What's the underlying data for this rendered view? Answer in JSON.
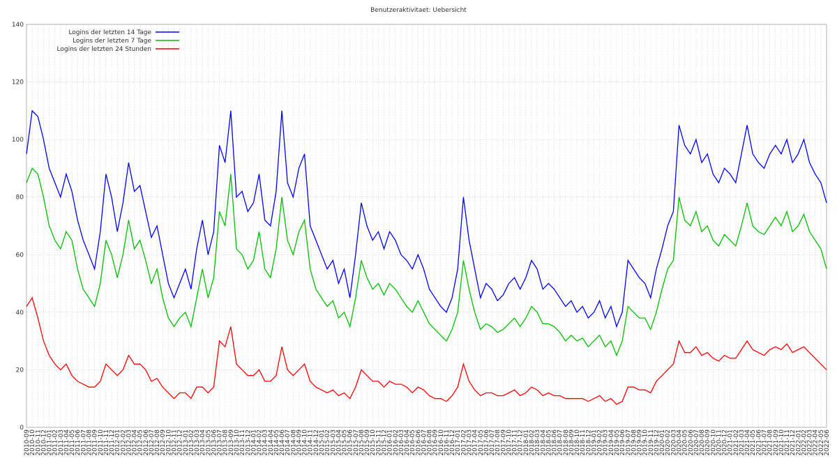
{
  "chart_data": {
    "type": "line",
    "title": "Benutzeraktivitaet: Uebersicht",
    "categories": [
      "2010-09",
      "2010-10",
      "2010-11",
      "2010-12",
      "2011-01",
      "2011-02",
      "2011-03",
      "2011-04",
      "2011-05",
      "2011-06",
      "2011-07",
      "2011-08",
      "2011-09",
      "2011-10",
      "2011-11",
      "2011-12",
      "2012-01",
      "2012-02",
      "2012-03",
      "2012-04",
      "2012-05",
      "2012-06",
      "2012-07",
      "2012-08",
      "2012-09",
      "2012-10",
      "2012-11",
      "2012-12",
      "2013-01",
      "2013-02",
      "2013-03",
      "2013-04",
      "2013-05",
      "2013-06",
      "2013-07",
      "2013-08",
      "2013-09",
      "2013-10",
      "2013-11",
      "2013-12",
      "2014-01",
      "2014-02",
      "2014-03",
      "2014-04",
      "2014-05",
      "2014-06",
      "2014-07",
      "2014-08",
      "2014-09",
      "2014-10",
      "2014-11",
      "2014-12",
      "2015-01",
      "2015-02",
      "2015-03",
      "2015-04",
      "2015-05",
      "2015-06",
      "2015-07",
      "2015-08",
      "2015-09",
      "2015-10",
      "2015-11",
      "2015-12",
      "2016-01",
      "2016-02",
      "2016-03",
      "2016-04",
      "2016-05",
      "2016-06",
      "2016-07",
      "2016-08",
      "2016-09",
      "2016-10",
      "2016-11",
      "2016-12",
      "2017-01",
      "2017-02",
      "2017-03",
      "2017-04",
      "2017-05",
      "2017-06",
      "2017-07",
      "2017-08",
      "2017-09",
      "2017-10",
      "2017-11",
      "2017-12",
      "2018-01",
      "2018-02",
      "2018-03",
      "2018-04",
      "2018-05",
      "2018-06",
      "2018-07",
      "2018-08",
      "2018-09",
      "2018-10",
      "2018-11",
      "2018-12",
      "2019-01",
      "2019-02",
      "2019-03",
      "2019-04",
      "2019-05",
      "2019-06",
      "2019-07",
      "2019-08",
      "2019-09",
      "2019-10",
      "2019-11",
      "2019-12",
      "2020-01",
      "2020-02",
      "2020-03",
      "2020-04",
      "2020-05",
      "2020-06",
      "2020-07",
      "2020-08",
      "2020-09",
      "2020-10",
      "2020-11",
      "2020-12",
      "2021-01",
      "2021-02",
      "2021-03",
      "2021-04",
      "2021-05",
      "2021-06",
      "2021-07",
      "2021-08",
      "2021-09",
      "2021-10",
      "2021-11",
      "2021-12",
      "2022-01",
      "2022-02",
      "2022-03",
      "2022-04",
      "2022-05",
      "2022-06"
    ],
    "series": [
      {
        "name": "Logins der letzten 14 Tage",
        "color": "#0000ff",
        "values": [
          95,
          110,
          108,
          100,
          90,
          85,
          80,
          88,
          82,
          72,
          65,
          60,
          55,
          68,
          88,
          80,
          68,
          78,
          92,
          82,
          84,
          75,
          66,
          70,
          60,
          50,
          45,
          50,
          55,
          48,
          62,
          72,
          60,
          68,
          98,
          92,
          110,
          80,
          82,
          75,
          78,
          88,
          72,
          70,
          82,
          110,
          85,
          80,
          90,
          95,
          70,
          65,
          60,
          55,
          58,
          50,
          55,
          45,
          60,
          78,
          70,
          65,
          68,
          62,
          68,
          65,
          60,
          58,
          55,
          60,
          55,
          48,
          45,
          42,
          40,
          45,
          55,
          80,
          65,
          55,
          45,
          50,
          48,
          44,
          46,
          50,
          52,
          48,
          52,
          58,
          55,
          48,
          50,
          48,
          45,
          42,
          44,
          40,
          42,
          38,
          40,
          44,
          38,
          42,
          35,
          40,
          58,
          55,
          52,
          50,
          45,
          55,
          62,
          70,
          75,
          105,
          98,
          95,
          100,
          92,
          95,
          88,
          85,
          90,
          88,
          85,
          95,
          105,
          95,
          92,
          90,
          95,
          98,
          95,
          100,
          92,
          95,
          100,
          92,
          88,
          85,
          78
        ]
      },
      {
        "name": "Logins der letzten 7 Tage",
        "color": "#00c000",
        "values": [
          85,
          90,
          88,
          80,
          70,
          65,
          62,
          68,
          65,
          55,
          48,
          45,
          42,
          50,
          65,
          60,
          52,
          60,
          72,
          62,
          65,
          58,
          50,
          55,
          45,
          38,
          35,
          38,
          40,
          35,
          45,
          55,
          45,
          52,
          75,
          70,
          88,
          62,
          60,
          55,
          58,
          68,
          55,
          52,
          62,
          80,
          65,
          60,
          68,
          72,
          55,
          48,
          45,
          42,
          44,
          38,
          40,
          35,
          45,
          58,
          52,
          48,
          50,
          46,
          50,
          48,
          45,
          42,
          40,
          44,
          40,
          36,
          34,
          32,
          30,
          34,
          40,
          58,
          48,
          40,
          34,
          36,
          35,
          33,
          34,
          36,
          38,
          35,
          38,
          42,
          40,
          36,
          36,
          35,
          33,
          30,
          32,
          30,
          31,
          28,
          30,
          32,
          28,
          30,
          25,
          30,
          42,
          40,
          38,
          38,
          34,
          40,
          48,
          55,
          58,
          80,
          72,
          70,
          75,
          68,
          70,
          65,
          63,
          67,
          65,
          63,
          70,
          78,
          70,
          68,
          67,
          70,
          73,
          70,
          75,
          68,
          70,
          74,
          68,
          65,
          62,
          55
        ]
      },
      {
        "name": "Logins der letzten 24 Stunden",
        "color": "#ff0000",
        "values": [
          42,
          45,
          38,
          30,
          25,
          22,
          20,
          22,
          18,
          16,
          15,
          14,
          14,
          16,
          22,
          20,
          18,
          20,
          25,
          22,
          22,
          20,
          16,
          17,
          14,
          12,
          10,
          12,
          12,
          10,
          14,
          14,
          12,
          14,
          30,
          28,
          35,
          22,
          20,
          18,
          18,
          20,
          16,
          16,
          18,
          28,
          20,
          18,
          20,
          22,
          16,
          14,
          13,
          12,
          13,
          11,
          12,
          10,
          14,
          20,
          18,
          16,
          16,
          14,
          16,
          15,
          15,
          14,
          12,
          14,
          13,
          11,
          10,
          10,
          9,
          11,
          14,
          22,
          16,
          13,
          11,
          12,
          12,
          11,
          11,
          12,
          13,
          11,
          12,
          14,
          13,
          11,
          12,
          11,
          11,
          10,
          10,
          10,
          10,
          9,
          10,
          11,
          9,
          10,
          8,
          9,
          14,
          14,
          13,
          13,
          12,
          16,
          18,
          20,
          22,
          30,
          26,
          26,
          28,
          25,
          26,
          24,
          23,
          25,
          24,
          24,
          27,
          30,
          27,
          26,
          25,
          27,
          28,
          27,
          29,
          26,
          27,
          28,
          26,
          24,
          22,
          20
        ]
      }
    ],
    "ylim": [
      0,
      140
    ],
    "yticks": [
      0,
      20,
      40,
      60,
      80,
      100,
      120,
      140
    ],
    "grid": true,
    "legend": "upper left"
  }
}
